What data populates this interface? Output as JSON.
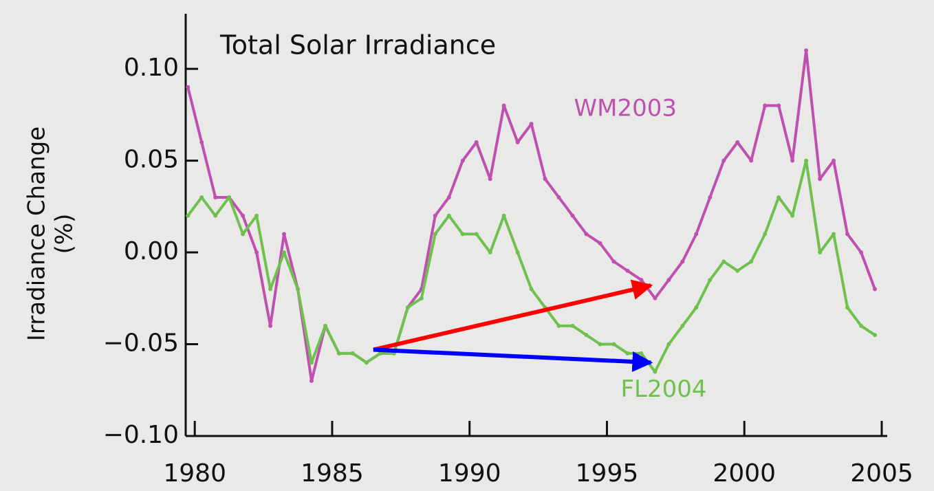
{
  "chart_data": {
    "type": "line",
    "title": "Total Solar Irradiance",
    "y_label": [
      "Irradiance Change",
      "(%)"
    ],
    "x": [
      1979.75,
      1980.25,
      1980.75,
      1981.25,
      1981.75,
      1982.25,
      1982.75,
      1983.25,
      1983.75,
      1984.25,
      1984.75,
      1985.25,
      1985.75,
      1986.25,
      1986.75,
      1987.25,
      1987.75,
      1988.25,
      1988.75,
      1989.25,
      1989.75,
      1990.25,
      1990.75,
      1991.25,
      1991.75,
      1992.25,
      1992.75,
      1993.25,
      1993.75,
      1994.25,
      1994.75,
      1995.25,
      1995.75,
      1996.25,
      1996.75,
      1997.25,
      1997.75,
      1998.25,
      1998.75,
      1999.25,
      1999.75,
      2000.25,
      2000.75,
      2001.25,
      2001.75,
      2002.25,
      2002.75,
      2003.25,
      2003.75,
      2004.25,
      2004.75
    ],
    "series": [
      {
        "name": "WM2003",
        "color": "#c050b0",
        "values": [
          0.09,
          0.06,
          0.03,
          0.03,
          0.02,
          0.0,
          -0.04,
          0.01,
          -0.02,
          -0.07,
          -0.04,
          -0.055,
          -0.055,
          -0.06,
          -0.055,
          -0.055,
          -0.03,
          -0.02,
          0.02,
          0.03,
          0.05,
          0.06,
          0.04,
          0.08,
          0.06,
          0.07,
          0.04,
          0.03,
          0.02,
          0.01,
          0.005,
          -0.005,
          -0.01,
          -0.015,
          -0.025,
          -0.015,
          -0.005,
          0.01,
          0.03,
          0.05,
          0.06,
          0.05,
          0.08,
          0.08,
          0.05,
          0.11,
          0.04,
          0.05,
          0.01,
          0.0,
          -0.02
        ]
      },
      {
        "name": "FL2004",
        "color": "#70c050",
        "values": [
          0.02,
          0.03,
          0.02,
          0.03,
          0.01,
          0.02,
          -0.02,
          0.0,
          -0.02,
          -0.06,
          -0.04,
          -0.055,
          -0.055,
          -0.06,
          -0.055,
          -0.055,
          -0.03,
          -0.025,
          0.01,
          0.02,
          0.01,
          0.01,
          0.0,
          0.02,
          0.0,
          -0.02,
          -0.03,
          -0.04,
          -0.04,
          -0.045,
          -0.05,
          -0.05,
          -0.055,
          -0.055,
          -0.065,
          -0.05,
          -0.04,
          -0.03,
          -0.015,
          -0.005,
          -0.01,
          -0.005,
          0.01,
          0.03,
          0.02,
          0.05,
          0.0,
          0.01,
          -0.03,
          -0.04,
          -0.045
        ]
      }
    ],
    "label_positions": [
      [
        1993.8,
        0.078
      ],
      [
        1995.5,
        -0.075
      ]
    ],
    "arrows": [
      {
        "from": [
          1986.5,
          -0.053
        ],
        "to": [
          1996.6,
          -0.018
        ],
        "color": "#ff0000"
      },
      {
        "from": [
          1986.5,
          -0.053
        ],
        "to": [
          1996.6,
          -0.06
        ],
        "color": "#0000ff"
      }
    ],
    "xlim": [
      1979.67,
      2005.2
    ],
    "ylim": [
      -0.1,
      0.13
    ],
    "xticks": [
      1980,
      1985,
      1990,
      1995,
      2000,
      2005
    ],
    "yticks": [
      {
        "value": -0.1,
        "label": "−0.10"
      },
      {
        "value": -0.05,
        "label": "−0.05"
      },
      {
        "value": 0,
        "label": "0.00"
      },
      {
        "value": 0.05,
        "label": "0.05"
      },
      {
        "value": 0.1,
        "label": "0.10"
      }
    ]
  }
}
